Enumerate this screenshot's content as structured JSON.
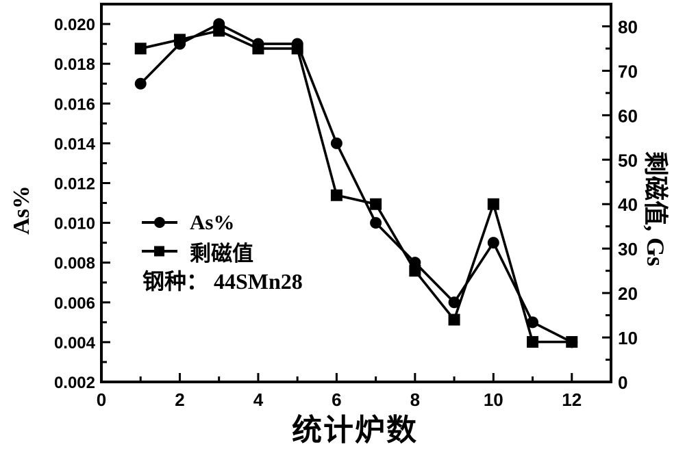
{
  "figure": {
    "background": "#ffffff",
    "ink": "#000000"
  },
  "chart_data": {
    "type": "line",
    "x": [
      1,
      2,
      3,
      4,
      5,
      6,
      7,
      8,
      9,
      10,
      11,
      12
    ],
    "series": [
      {
        "name": "As%",
        "axis": "left",
        "marker": "circle",
        "color": "#000000",
        "values": [
          0.017,
          0.019,
          0.02,
          0.019,
          0.019,
          0.014,
          0.01,
          0.008,
          0.006,
          0.009,
          0.005,
          0.004
        ]
      },
      {
        "name": "剩磁值",
        "axis": "right",
        "marker": "square",
        "color": "#000000",
        "values": [
          75,
          77,
          79,
          75,
          75,
          42,
          40,
          25,
          14,
          40,
          9,
          9
        ]
      }
    ],
    "annotation": "钢种： 44SMn28",
    "xlabel": "统计炉数",
    "ylabel_left": "As%",
    "ylabel_right": "剩磁值, Gs",
    "xlim": [
      0,
      13
    ],
    "ylim_left": [
      0.002,
      0.021
    ],
    "ylim_right": [
      0,
      85
    ],
    "xticks": [
      "0",
      "2",
      "4",
      "6",
      "8",
      "10",
      "12"
    ],
    "xminor_step": 1,
    "yticks_left": [
      "0.002",
      "0.004",
      "0.006",
      "0.008",
      "0.010",
      "0.012",
      "0.014",
      "0.016",
      "0.018",
      "0.020"
    ],
    "yticks_right": [
      "0",
      "10",
      "20",
      "30",
      "40",
      "50",
      "60",
      "70",
      "80"
    ],
    "grid": false,
    "legend_position": "inside-center-left",
    "frame": "box"
  }
}
